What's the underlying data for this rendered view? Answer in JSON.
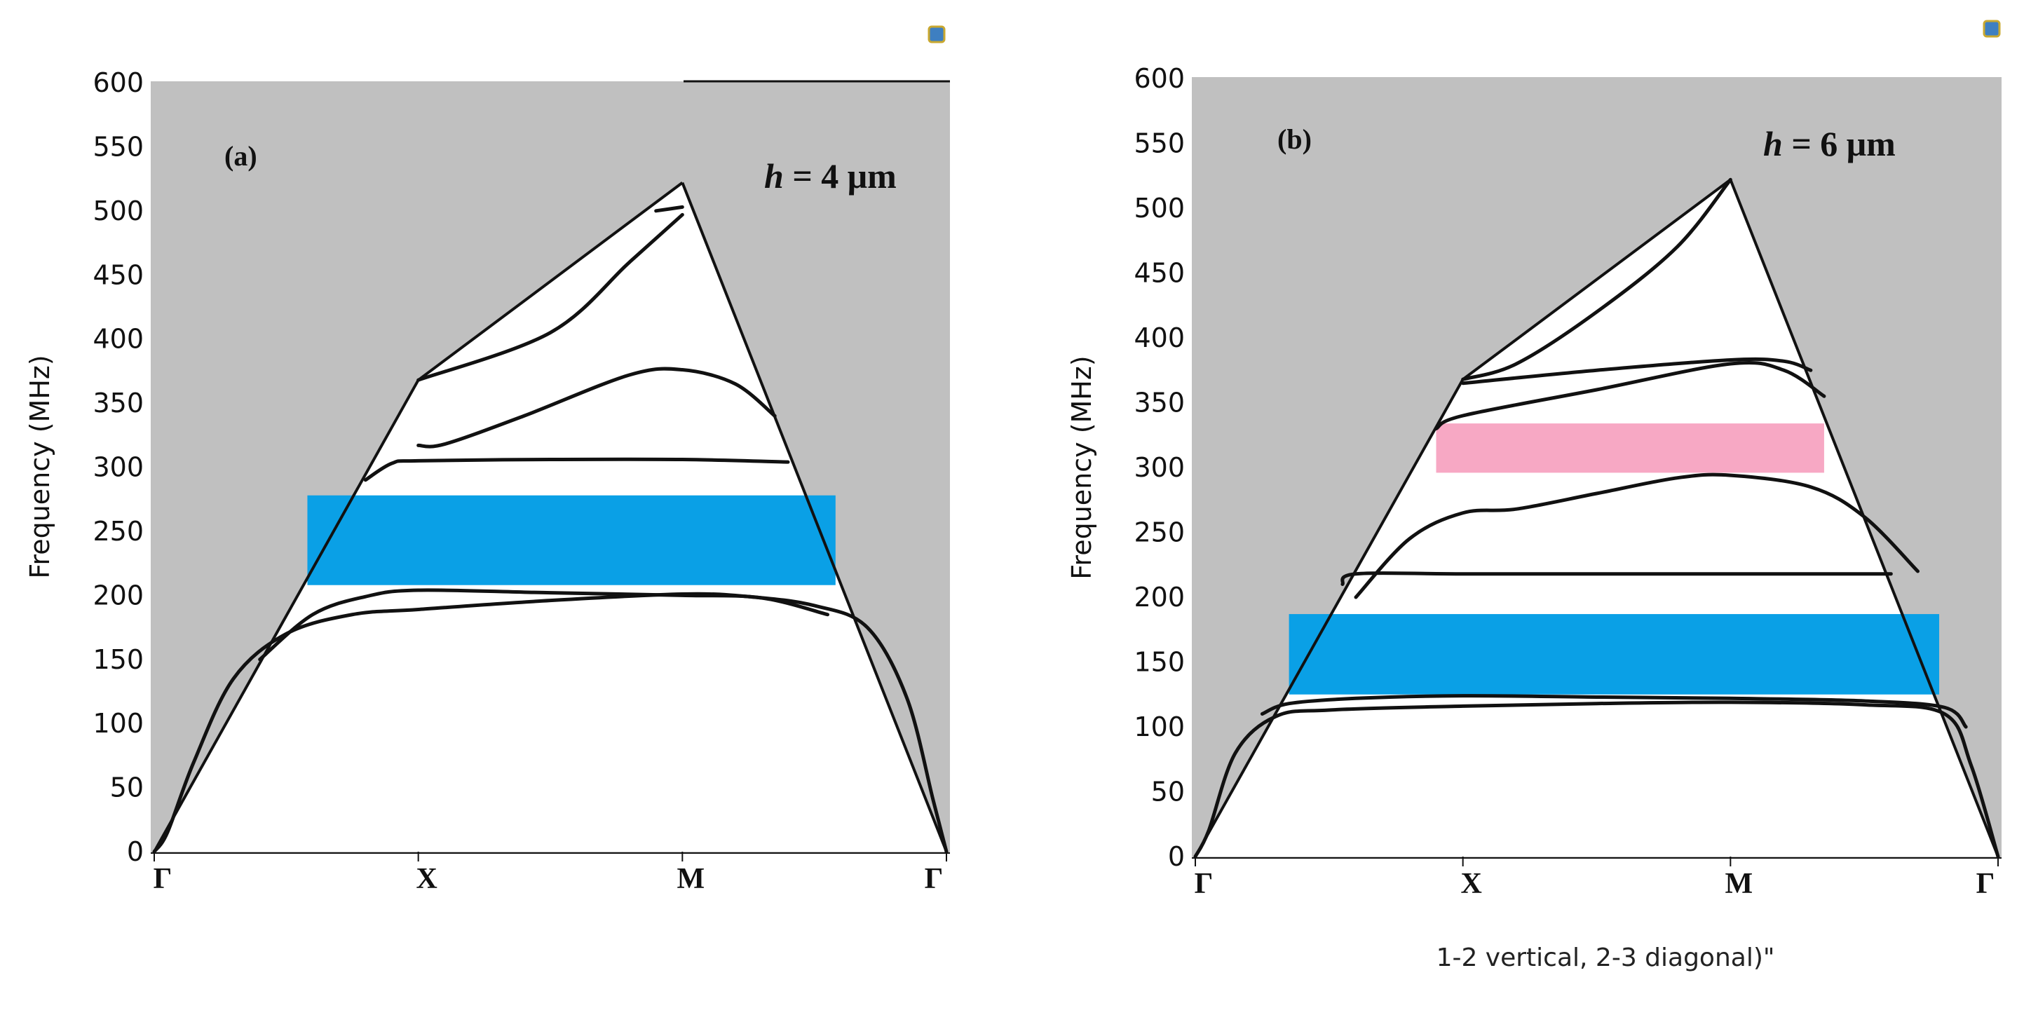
{
  "chart_data": [
    {
      "type": "line",
      "panel_label": "(a)",
      "annotation": {
        "italic": "h",
        "rest": " = 4 μm"
      },
      "ylabel": "Frequency (MHz)",
      "ylim": [
        0,
        600
      ],
      "yticks": [
        0,
        50,
        100,
        150,
        200,
        250,
        300,
        350,
        400,
        450,
        500,
        550,
        600
      ],
      "xticks": [
        "Γ",
        "X",
        "M",
        "Γ"
      ],
      "sound_cone_peak": {
        "X": 368,
        "M": 522
      },
      "bands": [
        {
          "name": "band-1",
          "x": [
            0,
            0.05,
            0.15,
            0.3,
            0.5,
            0.75,
            1,
            1.5,
            2,
            2.25,
            2.5,
            2.7,
            2.85,
            2.95,
            3
          ],
          "y": [
            0,
            15,
            70,
            135,
            170,
            185,
            189,
            196,
            201,
            199,
            192,
            175,
            120,
            40,
            0
          ]
        },
        {
          "name": "band-2",
          "x": [
            0.4,
            0.6,
            0.8,
            1,
            1.5,
            2,
            2.3,
            2.55
          ],
          "y": [
            150,
            185,
            199,
            204,
            202,
            200,
            198,
            185
          ]
        },
        {
          "name": "band-3",
          "x": [
            0.8,
            0.9,
            1,
            1.5,
            2,
            2.4
          ],
          "y": [
            290,
            303,
            305,
            306,
            306,
            304
          ]
        },
        {
          "name": "band-4",
          "x": [
            1,
            1.1,
            1.4,
            1.8,
            2,
            2.2,
            2.35
          ],
          "y": [
            317,
            318,
            340,
            372,
            376,
            365,
            340
          ]
        },
        {
          "name": "band-5",
          "x": [
            1,
            1.5,
            1.8,
            2
          ],
          "y": [
            368,
            405,
            460,
            497
          ]
        },
        {
          "name": "band-6",
          "x": [
            1.9,
            2
          ],
          "y": [
            500,
            503
          ]
        }
      ],
      "gaps": [
        {
          "color": "#0aa0e6",
          "x_range": [
            0.58,
            2.58
          ],
          "y_range": [
            208,
            278
          ]
        }
      ]
    },
    {
      "type": "line",
      "panel_label": "(b)",
      "annotation": {
        "italic": "h",
        "rest": " = 6 μm"
      },
      "ylabel": "Frequency (MHz)",
      "ylim": [
        0,
        600
      ],
      "yticks": [
        0,
        50,
        100,
        150,
        200,
        250,
        300,
        350,
        400,
        450,
        500,
        550,
        600
      ],
      "xticks": [
        "Γ",
        "X",
        "M",
        "Γ"
      ],
      "xlabel": "1-2 vertical, 2-3 diagonal)\"",
      "sound_cone_peak": {
        "X": 368,
        "M": 522
      },
      "bands": [
        {
          "name": "band-1",
          "x": [
            0,
            0.05,
            0.15,
            0.3,
            0.5,
            1,
            1.5,
            2,
            2.5,
            2.8,
            2.9,
            3
          ],
          "y": [
            0,
            20,
            80,
            108,
            113,
            116,
            118,
            119,
            117,
            110,
            70,
            0
          ]
        },
        {
          "name": "band-2",
          "x": [
            0.25,
            0.35,
            0.6,
            1,
            1.5,
            2,
            2.5,
            2.8,
            2.88
          ],
          "y": [
            110,
            118,
            122,
            124,
            123,
            122,
            120,
            115,
            100
          ]
        },
        {
          "name": "band-3",
          "x": [
            0.55,
            0.6,
            1,
            1.5,
            2,
            2.4,
            2.6
          ],
          "y": [
            210,
            218,
            218,
            218,
            218,
            218,
            218
          ]
        },
        {
          "name": "band-4",
          "x": [
            0.6,
            0.8,
            1,
            1.2,
            1.5,
            1.8,
            2,
            2.3,
            2.5,
            2.7
          ],
          "y": [
            200,
            245,
            265,
            268,
            280,
            292,
            294,
            285,
            262,
            220
          ]
        },
        {
          "name": "band-5",
          "x": [
            0.9,
            1,
            1.5,
            2,
            2.2,
            2.35
          ],
          "y": [
            330,
            340,
            360,
            380,
            375,
            355
          ]
        },
        {
          "name": "band-6",
          "x": [
            1,
            1.5,
            2,
            2.2,
            2.3
          ],
          "y": [
            365,
            375,
            383,
            382,
            375
          ]
        },
        {
          "name": "band-7",
          "x": [
            1,
            1.2,
            1.5,
            1.8,
            2
          ],
          "y": [
            368,
            380,
            420,
            470,
            522
          ]
        }
      ],
      "gaps": [
        {
          "color": "#0aa0e6",
          "x_range": [
            0.35,
            2.78
          ],
          "y_range": [
            125,
            187
          ]
        },
        {
          "color": "#f7a8c4",
          "x_range": [
            0.9,
            2.35
          ],
          "y_range": [
            296,
            334
          ]
        }
      ]
    }
  ]
}
